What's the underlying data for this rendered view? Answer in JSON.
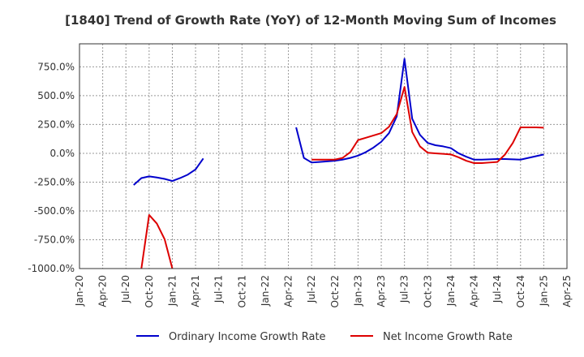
{
  "chart_data": {
    "type": "line",
    "title": "[1840]  Trend of Growth Rate (YoY) of 12-Month Moving Sum of Incomes",
    "xlabel": "",
    "ylabel": "",
    "x_ticks": [
      "Jan-20",
      "Apr-20",
      "Jul-20",
      "Oct-20",
      "Jan-21",
      "Apr-21",
      "Jul-21",
      "Oct-21",
      "Jan-22",
      "Apr-22",
      "Jul-22",
      "Oct-22",
      "Jan-23",
      "Apr-23",
      "Jul-23",
      "Oct-23",
      "Jan-24",
      "Apr-24",
      "Jul-24",
      "Oct-24",
      "Jan-25",
      "Apr-25"
    ],
    "y_ticks": [
      "750.0%",
      "500.0%",
      "250.0%",
      "0.0%",
      "-250.0%",
      "-500.0%",
      "-750.0%",
      "-1000.0%"
    ],
    "y_tick_values": [
      750,
      500,
      250,
      0,
      -250,
      -500,
      -750,
      -1000
    ],
    "ylim": [
      -1000,
      950
    ],
    "grid": true,
    "legend_position": "bottom",
    "series": [
      {
        "name": "Ordinary Income Growth Rate",
        "color": "#0000cc",
        "points": [
          [
            "2020-08",
            -275
          ],
          [
            "2020-09",
            -215
          ],
          [
            "2020-10",
            -200
          ],
          [
            "2020-11",
            -210
          ],
          [
            "2020-12",
            -222
          ],
          [
            "2021-01",
            -240
          ],
          [
            "2021-02",
            -215
          ],
          [
            "2021-03",
            -185
          ],
          [
            "2021-04",
            -140
          ],
          [
            "2021-05",
            -45
          ],
          [
            "2022-05",
            225
          ],
          [
            "2022-06",
            -40
          ],
          [
            "2022-07",
            -80
          ],
          [
            "2022-08",
            -75
          ],
          [
            "2022-09",
            -70
          ],
          [
            "2022-10",
            -65
          ],
          [
            "2022-11",
            -55
          ],
          [
            "2022-12",
            -40
          ],
          [
            "2023-01",
            -20
          ],
          [
            "2023-02",
            10
          ],
          [
            "2023-03",
            50
          ],
          [
            "2023-04",
            100
          ],
          [
            "2023-05",
            175
          ],
          [
            "2023-06",
            320
          ],
          [
            "2023-07",
            820
          ],
          [
            "2023-08",
            300
          ],
          [
            "2023-09",
            160
          ],
          [
            "2023-10",
            90
          ],
          [
            "2023-11",
            70
          ],
          [
            "2023-12",
            60
          ],
          [
            "2024-01",
            45
          ],
          [
            "2024-02",
            0
          ],
          [
            "2024-03",
            -30
          ],
          [
            "2024-04",
            -55
          ],
          [
            "2024-05",
            -55
          ],
          [
            "2024-06",
            -52
          ],
          [
            "2024-07",
            -50
          ],
          [
            "2024-08",
            -50
          ],
          [
            "2024-09",
            -52
          ],
          [
            "2024-10",
            -55
          ],
          [
            "2024-11",
            -40
          ],
          [
            "2024-12",
            -25
          ],
          [
            "2025-01",
            -10
          ]
        ]
      },
      {
        "name": "Net Income Growth Rate",
        "color": "#dd0000",
        "points": [
          [
            "2020-09",
            -1000
          ],
          [
            "2020-10",
            -535
          ],
          [
            "2020-11",
            -610
          ],
          [
            "2020-12",
            -745
          ],
          [
            "2021-01",
            -1000
          ],
          [
            "2022-07",
            -55
          ],
          [
            "2022-08",
            -55
          ],
          [
            "2022-09",
            -55
          ],
          [
            "2022-10",
            -55
          ],
          [
            "2022-11",
            -40
          ],
          [
            "2022-12",
            10
          ],
          [
            "2023-01",
            115
          ],
          [
            "2023-02",
            135
          ],
          [
            "2023-03",
            155
          ],
          [
            "2023-04",
            175
          ],
          [
            "2023-05",
            230
          ],
          [
            "2023-06",
            340
          ],
          [
            "2023-07",
            575
          ],
          [
            "2023-08",
            185
          ],
          [
            "2023-09",
            60
          ],
          [
            "2023-10",
            5
          ],
          [
            "2023-11",
            0
          ],
          [
            "2023-12",
            -5
          ],
          [
            "2024-01",
            -10
          ],
          [
            "2024-02",
            -35
          ],
          [
            "2024-03",
            -65
          ],
          [
            "2024-04",
            -85
          ],
          [
            "2024-05",
            -85
          ],
          [
            "2024-06",
            -80
          ],
          [
            "2024-07",
            -75
          ],
          [
            "2024-08",
            -10
          ],
          [
            "2024-09",
            90
          ],
          [
            "2024-10",
            225
          ],
          [
            "2024-11",
            225
          ],
          [
            "2024-12",
            225
          ],
          [
            "2025-01",
            222
          ]
        ]
      }
    ]
  }
}
